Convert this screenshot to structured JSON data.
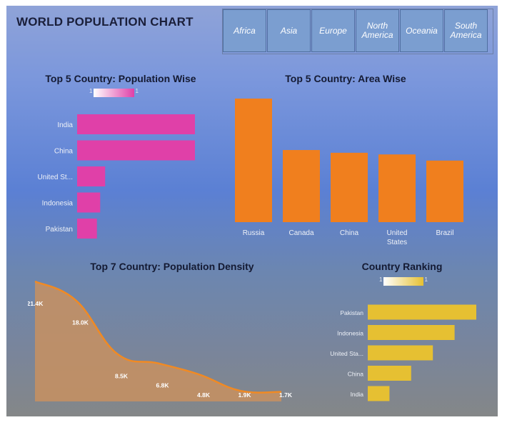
{
  "title": "WORLD POPULATION CHART",
  "continents": [
    "Africa",
    "Asia",
    "Europe",
    "North America",
    "Oceania",
    "South America"
  ],
  "colors": {
    "population": "#e040a8",
    "area": "#f07f1e",
    "density": "#c89060",
    "ranking": "#e6c032"
  },
  "chart_data": [
    {
      "type": "bar",
      "orientation": "horizontal",
      "title": "Top 5 Country: Population Wise",
      "legend": {
        "min_label": "1",
        "max_label": "1"
      },
      "categories": [
        "India",
        "China",
        "United St...",
        "Indonesia",
        "Pakistan"
      ],
      "values": [
        1.43,
        1.43,
        0.34,
        0.28,
        0.24
      ]
    },
    {
      "type": "bar",
      "orientation": "vertical",
      "title": "Top 5 Country: Area Wise",
      "categories": [
        "Russia",
        "Canada",
        "China",
        "United States",
        "Brazil"
      ],
      "values": [
        17.1,
        9.98,
        9.6,
        9.37,
        8.52
      ]
    },
    {
      "type": "area",
      "title": "Top 7 Country: Population Density",
      "labels": [
        "21.4K",
        "18.0K",
        "8.5K",
        "6.8K",
        "4.8K",
        "1.9K",
        "1.7K"
      ],
      "values": [
        21400,
        18000,
        8500,
        6800,
        4800,
        1900,
        1700
      ]
    },
    {
      "type": "bar",
      "orientation": "horizontal",
      "title": "Country Ranking",
      "legend": {
        "min_label": "1",
        "max_label": "1"
      },
      "categories": [
        "Pakistan",
        "Indonesia",
        "United Sta...",
        "China",
        "India"
      ],
      "values": [
        5,
        4,
        3,
        2,
        1
      ]
    }
  ]
}
